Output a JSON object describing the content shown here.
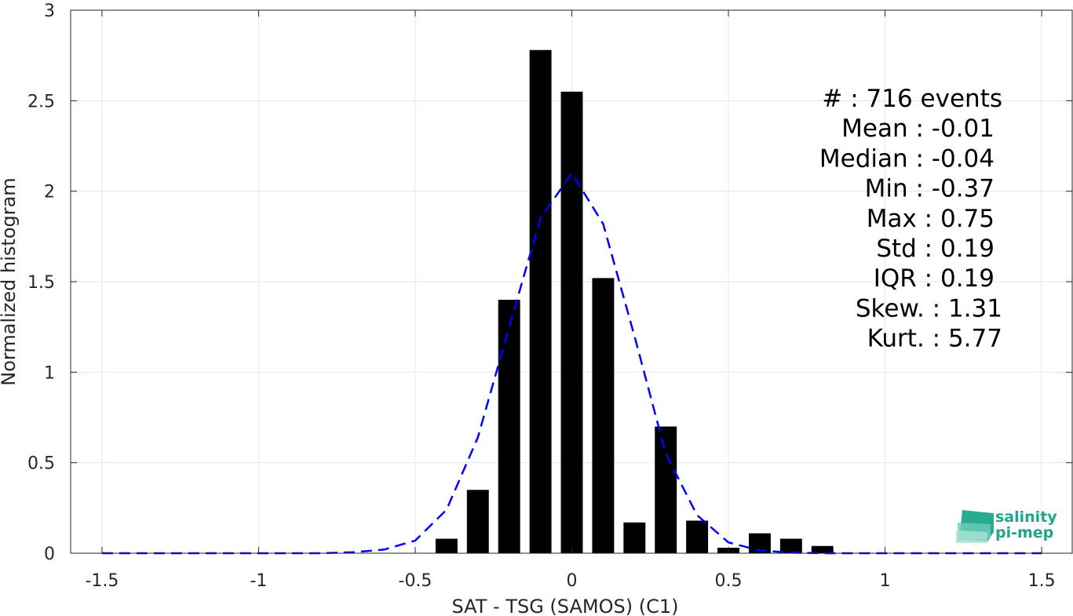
{
  "chart_data": {
    "type": "bar",
    "xlabel": "SAT - TSG (SAMOS) (C1)",
    "ylabel": "Normalized histogram",
    "xlim": [
      -1.6,
      1.6
    ],
    "ylim": [
      0,
      3
    ],
    "xticks": [
      -1.5,
      -1,
      -0.5,
      0,
      0.5,
      1,
      1.5
    ],
    "xtick_labels": [
      "-1.5",
      "-1",
      "-0.5",
      "0",
      "0.5",
      "1",
      "1.5"
    ],
    "yticks": [
      0,
      0.5,
      1,
      1.5,
      2,
      2.5,
      3
    ],
    "ytick_labels": [
      "0",
      "0.5",
      "1",
      "1.5",
      "2",
      "2.5",
      "3"
    ],
    "grid": true,
    "bin_width": 0.1,
    "bars": [
      {
        "x": -0.4,
        "y": 0.08
      },
      {
        "x": -0.3,
        "y": 0.35
      },
      {
        "x": -0.2,
        "y": 1.4
      },
      {
        "x": -0.1,
        "y": 2.78
      },
      {
        "x": 0.0,
        "y": 2.55
      },
      {
        "x": 0.1,
        "y": 1.52
      },
      {
        "x": 0.2,
        "y": 0.17
      },
      {
        "x": 0.3,
        "y": 0.7
      },
      {
        "x": 0.4,
        "y": 0.18
      },
      {
        "x": 0.5,
        "y": 0.03
      },
      {
        "x": 0.6,
        "y": 0.11
      },
      {
        "x": 0.7,
        "y": 0.08
      },
      {
        "x": 0.8,
        "y": 0.04
      }
    ],
    "bar_color": "#000000",
    "fit_curve": {
      "style": "dashed",
      "color": "#0000ff",
      "x": [
        -1.5,
        -1.4,
        -1.3,
        -1.2,
        -1.1,
        -1.0,
        -0.9,
        -0.8,
        -0.7,
        -0.6,
        -0.5,
        -0.4,
        -0.3,
        -0.2,
        -0.1,
        0.0,
        0.1,
        0.2,
        0.3,
        0.4,
        0.5,
        0.6,
        0.7,
        0.8,
        0.9,
        1.0,
        1.1,
        1.2,
        1.3,
        1.4,
        1.5
      ],
      "y": [
        0,
        0,
        0,
        0,
        0,
        0,
        0,
        0,
        0.005,
        0.02,
        0.07,
        0.24,
        0.64,
        1.25,
        1.85,
        2.1,
        1.82,
        1.2,
        0.55,
        0.21,
        0.06,
        0.015,
        0.003,
        0,
        0,
        0,
        0,
        0,
        0,
        0,
        0
      ]
    },
    "annotations": [
      "#  : 716 events",
      "Mean : -0.01",
      "Median : -0.04",
      "Min : -0.37",
      "Max : 0.75",
      "Std : 0.19",
      "IQR : 0.19",
      "Skew. : 1.31",
      "Kurt. : 5.77"
    ]
  },
  "logo": {
    "line1": "salinity",
    "line2": "pi-mep",
    "color": "#1fa58c"
  }
}
